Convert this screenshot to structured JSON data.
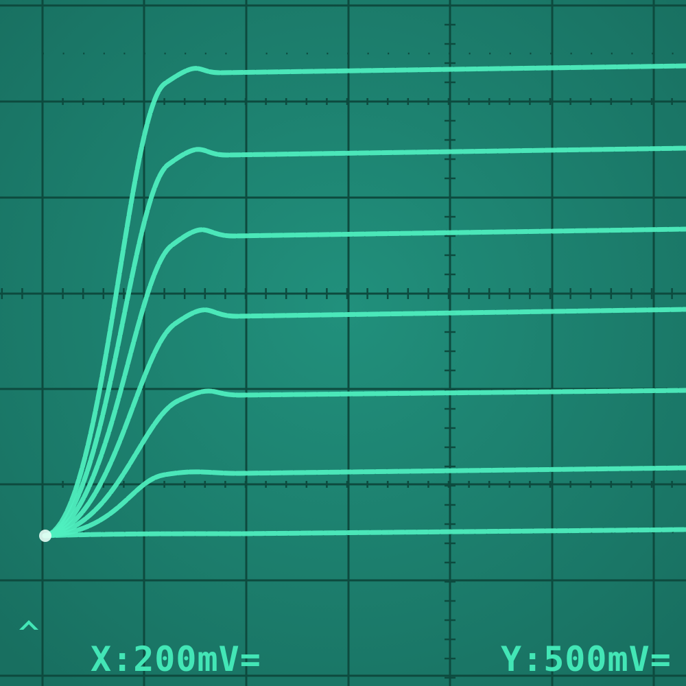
{
  "readout": {
    "x": "X:200mV=",
    "y": "Y:500mV="
  }
}
